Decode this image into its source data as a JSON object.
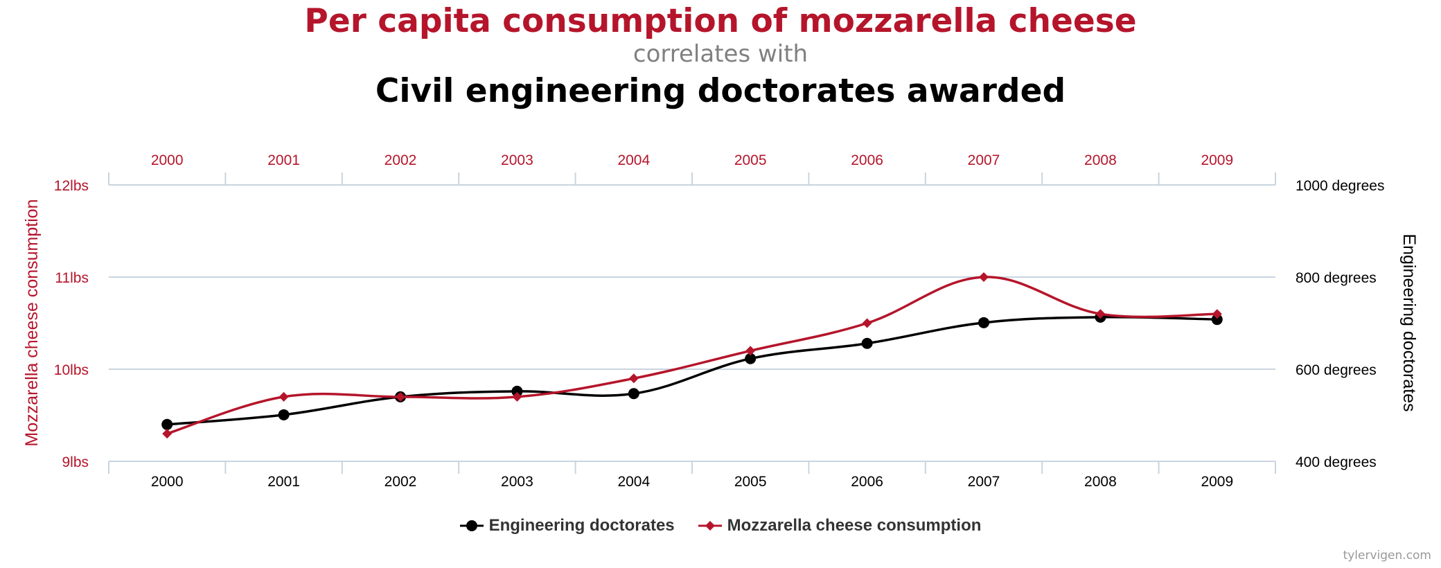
{
  "titles": {
    "main": "Per capita consumption of mozzarella cheese",
    "connector": "correlates with",
    "secondary": "Civil engineering doctorates awarded"
  },
  "credit": "tylervigen.com",
  "colors": {
    "mozzarella": "#b5152b",
    "doctorates": "#000000",
    "grid": "#c8d4e0",
    "connector": "#808080"
  },
  "chart_data": {
    "type": "line",
    "x": [
      "2000",
      "2001",
      "2002",
      "2003",
      "2004",
      "2005",
      "2006",
      "2007",
      "2008",
      "2009"
    ],
    "top_tick_labels": [
      "2000",
      "2001",
      "2002",
      "2003",
      "2004",
      "2005",
      "2006",
      "2007",
      "2008",
      "2009"
    ],
    "bottom_tick_labels": [
      "2000",
      "2001",
      "2002",
      "2003",
      "2004",
      "2005",
      "2006",
      "2007",
      "2008",
      "2009"
    ],
    "left_axis": {
      "label": "Mozzarella cheese consumption",
      "range": [
        9,
        12
      ],
      "ticks": [
        9,
        10,
        11,
        12
      ],
      "tick_labels": [
        "9lbs",
        "10lbs",
        "11lbs",
        "12lbs"
      ]
    },
    "right_axis": {
      "label": "Engineering doctorates",
      "range": [
        400,
        1000
      ],
      "ticks": [
        400,
        600,
        800,
        1000
      ],
      "tick_labels": [
        "400 degrees",
        "600 degrees",
        "800 degrees",
        "1000 degrees"
      ]
    },
    "grid": true,
    "legend_position": "bottom-center",
    "series": [
      {
        "name": "Engineering doctorates",
        "axis": "right",
        "marker": "circle",
        "color": "#000000",
        "values": [
          480,
          501,
          540,
          552,
          547,
          623,
          656,
          701,
          713,
          708
        ]
      },
      {
        "name": "Mozzarella cheese consumption",
        "axis": "left",
        "marker": "diamond",
        "color": "#b5152b",
        "values": [
          9.3,
          9.7,
          9.7,
          9.7,
          9.9,
          10.2,
          10.5,
          11.0,
          10.6,
          10.6
        ]
      }
    ]
  }
}
